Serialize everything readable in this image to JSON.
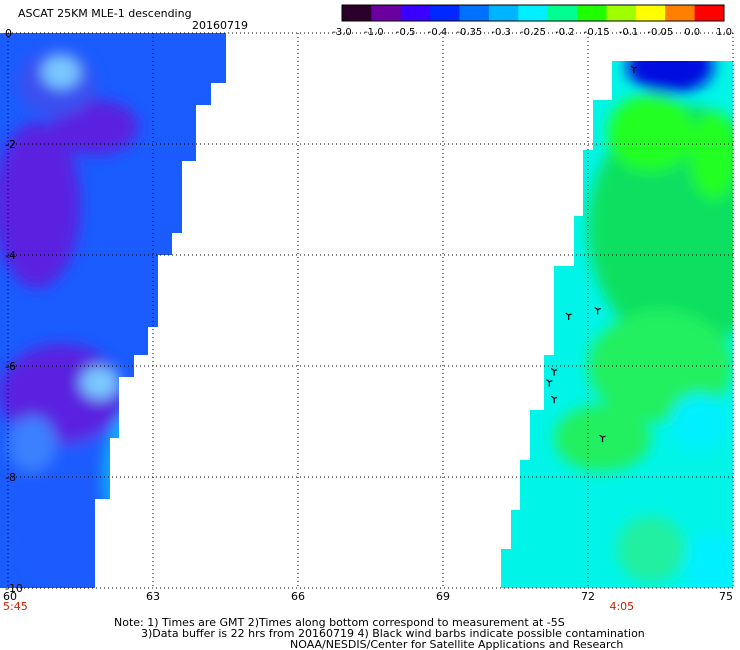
{
  "chart_data": {
    "type": "heatmap",
    "title": "ASCAT 25KM MLE-1 descending",
    "date": "20160719",
    "x_ticks": [
      60,
      63,
      66,
      69,
      72,
      75
    ],
    "xlim": [
      60,
      75
    ],
    "y_ticks": [
      0,
      -2,
      -4,
      -6,
      -8,
      -10
    ],
    "y_tick_labels": [
      "0",
      "-2",
      "-4",
      "-6",
      "-8",
      "-10"
    ],
    "ylim": [
      -10,
      0
    ],
    "grid": true,
    "time_labels": [
      {
        "x": 60,
        "text": "5:45"
      },
      {
        "x": 72.7,
        "text": "4:05"
      }
    ],
    "colorbar": {
      "ticks": [
        "-3.0",
        "-1.0",
        "-0.5",
        "-0.4",
        "-0.35",
        "-0.3",
        "-0.25",
        "-0.2",
        "-0.15",
        "-0.1",
        "-0.05",
        "0.0",
        "1.0"
      ],
      "colors": [
        "#2a002a",
        "#6a00a0",
        "#3a00ff",
        "#0028ff",
        "#0070ff",
        "#00b4ff",
        "#00f0ff",
        "#00ff90",
        "#20ff00",
        "#a0ff00",
        "#ffff00",
        "#ff8000",
        "#ff0000"
      ]
    },
    "swaths": [
      {
        "name": "left",
        "edge": [
          {
            "y": 0.0,
            "x": 64.5
          },
          {
            "y": -0.9,
            "x": 64.5
          },
          {
            "y": -1.3,
            "x": 64.2
          },
          {
            "y": -2.3,
            "x": 63.9
          },
          {
            "y": -2.7,
            "x": 63.6
          },
          {
            "y": -3.6,
            "x": 63.6
          },
          {
            "y": -4.0,
            "x": 63.4
          },
          {
            "y": -5.3,
            "x": 63.1
          },
          {
            "y": -5.8,
            "x": 62.9
          },
          {
            "y": -6.2,
            "x": 62.6
          },
          {
            "y": -7.3,
            "x": 62.3
          },
          {
            "y": -8.4,
            "x": 62.1
          },
          {
            "y": -9.5,
            "x": 61.8
          },
          {
            "y": -10.0,
            "x": 61.8
          }
        ]
      },
      {
        "name": "right",
        "edge": [
          {
            "y": -0.5,
            "x": 72.8
          },
          {
            "y": -1.2,
            "x": 72.5
          },
          {
            "y": -2.1,
            "x": 72.1
          },
          {
            "y": -3.3,
            "x": 71.9
          },
          {
            "y": -4.2,
            "x": 71.7
          },
          {
            "y": -5.8,
            "x": 71.3
          },
          {
            "y": -6.8,
            "x": 71.1
          },
          {
            "y": -7.7,
            "x": 70.8
          },
          {
            "y": -8.6,
            "x": 70.6
          },
          {
            "y": -9.3,
            "x": 70.4
          },
          {
            "y": -10.0,
            "x": 70.2
          }
        ]
      }
    ],
    "field_regions": [
      {
        "cx": 62.0,
        "cy": -8.6,
        "rx": 2.2,
        "ry": 1.6,
        "color": "#1a5cff"
      },
      {
        "cx": 61.1,
        "cy": -6.5,
        "rx": 1.3,
        "ry": 0.9,
        "color": "#5a20e0"
      },
      {
        "cx": 60.6,
        "cy": -3.1,
        "rx": 0.9,
        "ry": 1.5,
        "color": "#5a20e0"
      },
      {
        "cx": 61.8,
        "cy": -1.7,
        "rx": 0.9,
        "ry": 0.5,
        "color": "#5a20e0"
      },
      {
        "cx": 61.0,
        "cy": -0.9,
        "rx": 0.8,
        "ry": 0.6,
        "color": "#3a50f0"
      },
      {
        "cx": 61.1,
        "cy": -0.7,
        "rx": 0.4,
        "ry": 0.3,
        "color": "#7ac8ff"
      },
      {
        "cx": 61.9,
        "cy": -6.3,
        "rx": 0.4,
        "ry": 0.3,
        "color": "#7ac8ff"
      },
      {
        "cx": 62.6,
        "cy": -8.0,
        "rx": 0.6,
        "ry": 1.2,
        "color": "#00b4ff"
      },
      {
        "cx": 60.5,
        "cy": -7.4,
        "rx": 0.5,
        "ry": 0.5,
        "color": "#3a80ff"
      },
      {
        "cx": 74.0,
        "cy": -3.5,
        "rx": 2.0,
        "ry": 2.2,
        "color": "#10e060"
      },
      {
        "cx": 73.3,
        "cy": -1.8,
        "rx": 0.9,
        "ry": 0.7,
        "color": "#20ff20"
      },
      {
        "cx": 74.6,
        "cy": -2.2,
        "rx": 0.5,
        "ry": 0.8,
        "color": "#20ff20"
      },
      {
        "cx": 73.5,
        "cy": -6.0,
        "rx": 1.5,
        "ry": 1.0,
        "color": "#20f060"
      },
      {
        "cx": 72.3,
        "cy": -7.3,
        "rx": 1.0,
        "ry": 0.6,
        "color": "#20f060"
      },
      {
        "cx": 74.3,
        "cy": -7.0,
        "rx": 0.6,
        "ry": 0.5,
        "color": "#00f0ff"
      },
      {
        "cx": 74.6,
        "cy": -9.6,
        "rx": 0.6,
        "ry": 0.6,
        "color": "#00f0ff"
      },
      {
        "cx": 73.3,
        "cy": -9.3,
        "rx": 0.7,
        "ry": 0.6,
        "color": "#20f0a0"
      },
      {
        "cx": 73.7,
        "cy": -0.6,
        "rx": 0.9,
        "ry": 0.5,
        "color": "#0010e0"
      }
    ],
    "contamination_marks": [
      {
        "x": 72.95,
        "y": -0.65
      },
      {
        "x": 71.6,
        "y": -5.1
      },
      {
        "x": 72.2,
        "y": -5.0
      },
      {
        "x": 71.3,
        "y": -6.1
      },
      {
        "x": 71.2,
        "y": -6.3
      },
      {
        "x": 71.3,
        "y": -6.6
      },
      {
        "x": 72.3,
        "y": -7.3
      }
    ]
  },
  "notes": {
    "line1": "Note: 1) Times are GMT 2)Times along bottom correspond to measurement at -5S",
    "line2": "3)Data buffer is 22 hrs from 20160719 4) Black wind barbs indicate possible contamination",
    "line3": "NOAA/NESDIS/Center for Satellite Applications and Research"
  }
}
